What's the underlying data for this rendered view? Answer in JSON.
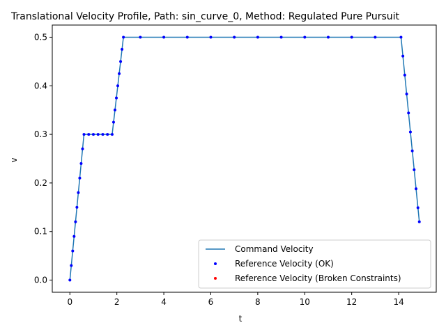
{
  "chart_data": {
    "type": "line",
    "title": "Translational Velocity Profile, Path: sin_curve_0, Method: Regulated Pure Pursuit",
    "xlabel": "t",
    "ylabel": "v",
    "xlim": [
      -0.75,
      15.6
    ],
    "ylim": [
      -0.025,
      0.525
    ],
    "xticks": [
      0,
      2,
      4,
      6,
      8,
      10,
      12,
      14
    ],
    "yticks": [
      0.0,
      0.1,
      0.2,
      0.3,
      0.4,
      0.5
    ],
    "xtick_labels": [
      "0",
      "2",
      "4",
      "6",
      "8",
      "10",
      "12",
      "14"
    ],
    "ytick_labels": [
      "0.0",
      "0.1",
      "0.2",
      "0.3",
      "0.4",
      "0.5"
    ],
    "grid": false,
    "legend_position": "lower right",
    "legend": [
      {
        "label": "Command Velocity",
        "kind": "line",
        "color": "#1f77b4"
      },
      {
        "label": "Reference Velocity (OK)",
        "kind": "point",
        "color": "#0000ff"
      },
      {
        "label": "Reference Velocity (Broken Constraints)",
        "kind": "point",
        "color": "#ff0000"
      }
    ],
    "series": [
      {
        "name": "Command Velocity",
        "type": "line",
        "color": "#1f77b4",
        "x": [
          0.0,
          0.6,
          1.8,
          2.28,
          14.1,
          14.88
        ],
        "y": [
          0.0,
          0.3,
          0.3,
          0.5,
          0.5,
          0.12
        ]
      },
      {
        "name": "Reference Velocity (OK)",
        "type": "scatter",
        "color": "#0000ff",
        "x": [
          0.0,
          0.06,
          0.12,
          0.18,
          0.24,
          0.3,
          0.36,
          0.42,
          0.48,
          0.54,
          0.6,
          0.8,
          1.0,
          1.2,
          1.4,
          1.6,
          1.8,
          1.86,
          1.92,
          1.98,
          2.04,
          2.1,
          2.16,
          2.22,
          2.28,
          3.0,
          4.0,
          5.0,
          6.0,
          7.0,
          8.0,
          9.0,
          10.0,
          11.0,
          12.0,
          13.0,
          14.1,
          14.18,
          14.26,
          14.34,
          14.42,
          14.5,
          14.58,
          14.66,
          14.74,
          14.82,
          14.88
        ],
        "y": [
          0.0,
          0.03,
          0.06,
          0.09,
          0.12,
          0.15,
          0.18,
          0.21,
          0.24,
          0.27,
          0.3,
          0.3,
          0.3,
          0.3,
          0.3,
          0.3,
          0.3,
          0.325,
          0.35,
          0.375,
          0.4,
          0.425,
          0.45,
          0.475,
          0.5,
          0.5,
          0.5,
          0.5,
          0.5,
          0.5,
          0.5,
          0.5,
          0.5,
          0.5,
          0.5,
          0.5,
          0.5,
          0.461,
          0.422,
          0.383,
          0.344,
          0.305,
          0.266,
          0.227,
          0.188,
          0.149,
          0.12
        ]
      },
      {
        "name": "Reference Velocity (Broken Constraints)",
        "type": "scatter",
        "color": "#ff0000",
        "x": [],
        "y": []
      }
    ]
  }
}
